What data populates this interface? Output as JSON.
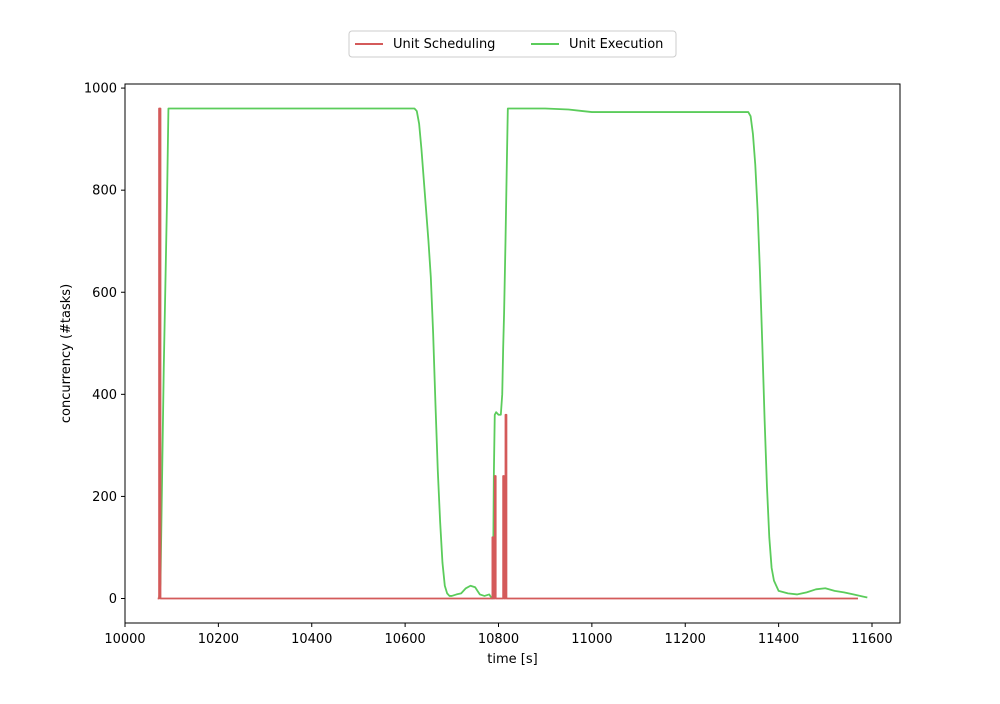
{
  "chart_data": {
    "type": "line",
    "title": "",
    "xlabel": "time [s]",
    "ylabel": "concurrency (#tasks)",
    "xlim": [
      10000,
      11660
    ],
    "ylim": [
      -48,
      1008
    ],
    "xticks": [
      10000,
      10200,
      10400,
      10600,
      10800,
      11000,
      11200,
      11400,
      11600
    ],
    "yticks": [
      0,
      200,
      400,
      600,
      800,
      1000
    ],
    "grid": false,
    "legend_position": "top-center",
    "series": [
      {
        "name": "Unit Scheduling",
        "color": "#d45a5a",
        "x": [
          10070,
          10073,
          10073,
          10076,
          10076,
          10787,
          10787,
          10789,
          10789,
          10792,
          10792,
          10794,
          10794,
          10810,
          10810,
          10812,
          10812,
          10815,
          10815,
          10817,
          10817,
          11570
        ],
        "y": [
          0,
          0,
          960,
          960,
          0,
          0,
          120,
          120,
          0,
          0,
          240,
          240,
          0,
          0,
          240,
          240,
          0,
          0,
          360,
          360,
          0,
          0
        ]
      },
      {
        "name": "Unit Execution",
        "color": "#5bcc5b",
        "x": [
          10073,
          10076,
          10083,
          10090,
          10093,
          10100,
          10200,
          10400,
          10600,
          10620,
          10625,
          10630,
          10635,
          10640,
          10645,
          10650,
          10655,
          10660,
          10665,
          10670,
          10675,
          10680,
          10685,
          10690,
          10695,
          10700,
          10710,
          10720,
          10730,
          10740,
          10750,
          10755,
          10760,
          10770,
          10780,
          10786,
          10788,
          10790,
          10792,
          10795,
          10800,
          10805,
          10808,
          10810,
          10812,
          10815,
          10818,
          10820,
          10850,
          10900,
          10950,
          10980,
          11000,
          11100,
          11200,
          11300,
          11335,
          11340,
          11345,
          11350,
          11355,
          11360,
          11365,
          11370,
          11375,
          11380,
          11385,
          11390,
          11400,
          11420,
          11440,
          11460,
          11480,
          11500,
          11520,
          11540,
          11560,
          11580,
          11590
        ],
        "y": [
          0,
          30,
          450,
          780,
          960,
          960,
          960,
          960,
          960,
          960,
          955,
          930,
          880,
          820,
          760,
          700,
          630,
          520,
          380,
          250,
          150,
          70,
          25,
          10,
          5,
          5,
          8,
          10,
          20,
          25,
          22,
          15,
          8,
          5,
          8,
          0,
          0,
          240,
          360,
          365,
          360,
          360,
          400,
          490,
          560,
          700,
          860,
          960,
          960,
          960,
          958,
          955,
          953,
          953,
          953,
          953,
          953,
          945,
          910,
          850,
          760,
          640,
          500,
          350,
          220,
          120,
          60,
          35,
          15,
          10,
          8,
          12,
          18,
          20,
          15,
          12,
          8,
          4,
          2
        ]
      }
    ]
  }
}
